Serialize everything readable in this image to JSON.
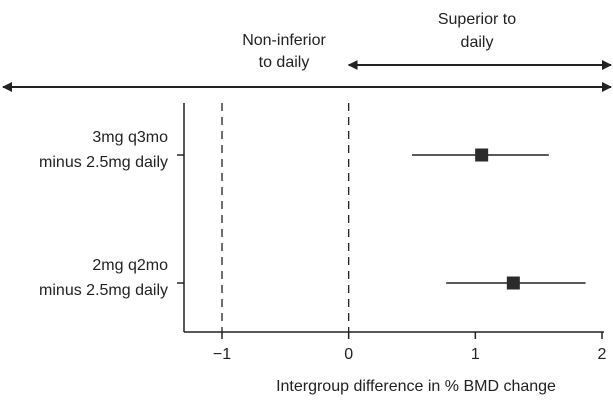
{
  "chart_data": {
    "type": "forest",
    "xlabel": "Intergroup difference in % BMD change",
    "xlim": [
      -1.3,
      2
    ],
    "x_ticks": [
      "−1",
      "0",
      "1",
      "2"
    ],
    "x_tick_values": [
      -1,
      0,
      1,
      2
    ],
    "reference_lines": [
      -1,
      0
    ],
    "annotations": {
      "non_inferior": [
        "Non-inferior",
        "to daily"
      ],
      "superior": [
        "Superior to",
        "daily"
      ]
    },
    "rows": [
      {
        "label": [
          "3mg q3mo",
          "minus 2.5mg daily"
        ],
        "estimate": 1.05,
        "ci_low": 0.5,
        "ci_high": 1.58
      },
      {
        "label": [
          "2mg q2mo",
          "minus 2.5mg daily"
        ],
        "estimate": 1.3,
        "ci_low": 0.77,
        "ci_high": 1.87
      }
    ],
    "marker_color": "#2b2b2b",
    "line_color": "#222222"
  }
}
